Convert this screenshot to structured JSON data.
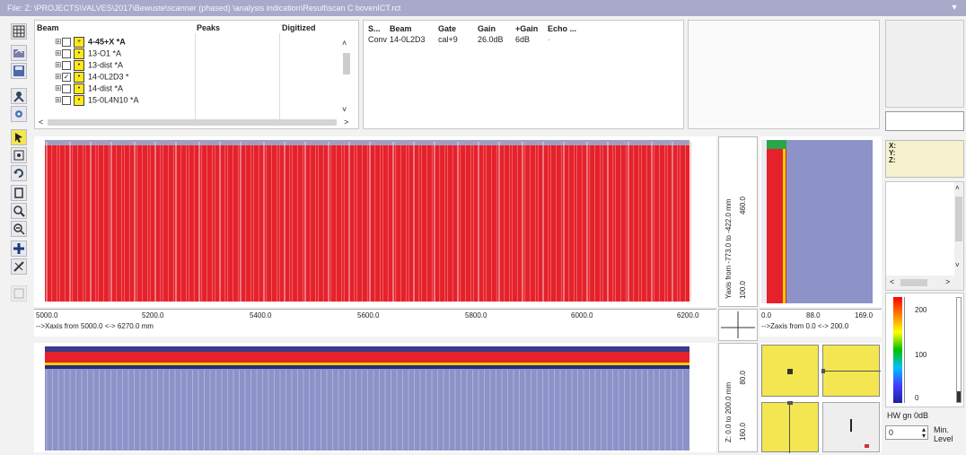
{
  "window": {
    "title": "File: Z: \\PROJECTS\\VALVES\\2017\\Bewuste\\scanner (phased) \\analysis indication\\Result\\scan C bovenICT.rct",
    "menu_glyph": "▾"
  },
  "toolbar": {
    "icons": [
      "grid-icon",
      "open-icon",
      "save-icon",
      "probe-icon",
      "gear-icon",
      "cursor-icon",
      "view-icon",
      "undo-icon",
      "rotate-icon",
      "zoom-in-icon",
      "zoom-out-icon",
      "crosshair-icon",
      "measure-icon",
      "disabled-icon"
    ]
  },
  "beam_tree": {
    "headers": {
      "beam": "Beam",
      "peaks": "Peaks",
      "digitized": "Digitized"
    },
    "rows": [
      {
        "label": "4-45+X *A",
        "checked": false,
        "bold": true
      },
      {
        "label": "13-O1 *A",
        "checked": false,
        "bold": false
      },
      {
        "label": "13-dist *A",
        "checked": false,
        "bold": false
      },
      {
        "label": "14-0L2D3 *",
        "checked": true,
        "bold": false
      },
      {
        "label": "14-dist *A",
        "checked": false,
        "bold": false
      },
      {
        "label": "15-0L4N10 *A",
        "checked": false,
        "bold": false
      }
    ],
    "scroll_up": "˄",
    "scroll_down": "˅",
    "scroll_left": "<",
    "scroll_right": ">"
  },
  "beam_info": {
    "headers": {
      "s": "S...",
      "beam": "Beam",
      "gate": "Gate",
      "gain": "Gain",
      "plus_gain": "+Gain",
      "echo": "Echo ..."
    },
    "row": {
      "s": "Conv",
      "beam": "14-0L2D3",
      "gate": "cal+9",
      "gain": "26.0dB",
      "plus_gain": "6dB",
      "echo": "-"
    }
  },
  "cscan_axis": {
    "ticks": [
      "5000.0",
      "5200.0",
      "5400.0",
      "5600.0",
      "5800.0",
      "6000.0",
      "6200.0"
    ],
    "label": "-->Xaxis  from 5000.0 <-> 6270.0 mm"
  },
  "side_axis": {
    "label": "Yaxis from -773.0 to -422.0 mm",
    "ticks": [
      "460.0",
      "100.0"
    ]
  },
  "zaxis": {
    "ticks": [
      "0.0",
      "88.0",
      "169.0"
    ],
    "label": "-->Zaxis  from 0.0 <-> 200.0"
  },
  "bscan_axis": {
    "label": "Z: 0.0 to 200.0 mm",
    "ticks": [
      "80.0",
      "160.0"
    ]
  },
  "legend_panel": {
    "labels": [
      "X:",
      "Y:",
      "Z:"
    ]
  },
  "scroll_panel": {
    "left": "<",
    "right": ">",
    "up": "˄",
    "down": "˅"
  },
  "colorbar": {
    "ticks": [
      "200",
      "100",
      "0"
    ],
    "colors": [
      "#ff0000",
      "#ff8000",
      "#ffff00",
      "#00c000",
      "#00c0ff",
      "#4040ff",
      "#2020a0"
    ]
  },
  "gain_control": {
    "label": "HW gn 0dB",
    "value": "0",
    "min_label": "Min.",
    "level_label": "Level"
  },
  "colors": {
    "scan_red": "#e5212b",
    "scan_blue": "#8d93c8",
    "quad_yellow": "#f4e650"
  }
}
